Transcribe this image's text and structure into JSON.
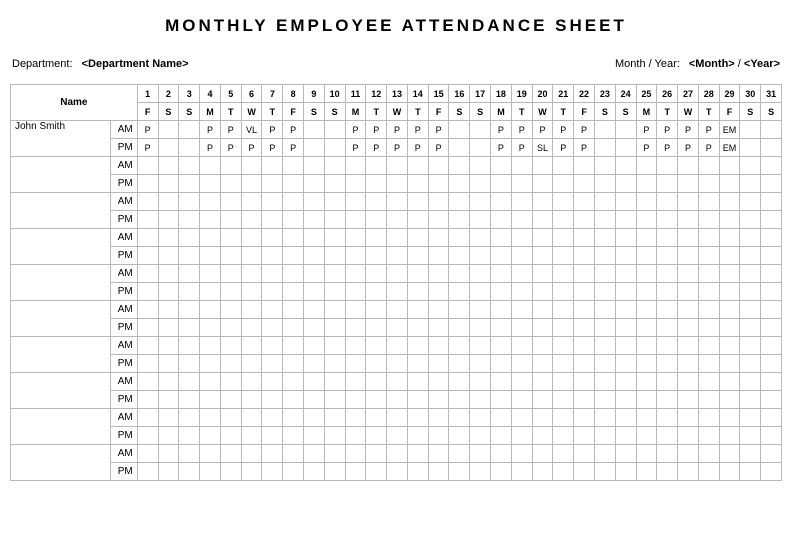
{
  "title": "MONTHLY EMPLOYEE ATTENDANCE SHEET",
  "meta": {
    "department_label": "Department:",
    "department_value": "<Department Name>",
    "month_year_label": "Month / Year:",
    "month_value": "<Month>",
    "month_year_separator": "/",
    "year_value": "<Year>"
  },
  "headers": {
    "name_label": "Name",
    "day_numbers": [
      "1",
      "2",
      "3",
      "4",
      "5",
      "6",
      "7",
      "8",
      "9",
      "10",
      "11",
      "12",
      "13",
      "14",
      "15",
      "16",
      "17",
      "18",
      "19",
      "20",
      "21",
      "22",
      "23",
      "24",
      "25",
      "26",
      "27",
      "28",
      "29",
      "30",
      "31"
    ],
    "day_letters": [
      "F",
      "S",
      "S",
      "M",
      "T",
      "W",
      "T",
      "F",
      "S",
      "S",
      "M",
      "T",
      "W",
      "T",
      "F",
      "S",
      "S",
      "M",
      "T",
      "W",
      "T",
      "F",
      "S",
      "S",
      "M",
      "T",
      "W",
      "T",
      "F",
      "S",
      "S"
    ]
  },
  "shift_labels": {
    "am": "AM",
    "pm": "PM"
  },
  "employees": [
    {
      "name": "John Smith",
      "am": [
        "P",
        "",
        "",
        "P",
        "P",
        "VL",
        "P",
        "P",
        "",
        "",
        "P",
        "P",
        "P",
        "P",
        "P",
        "",
        "",
        "P",
        "P",
        "P",
        "P",
        "P",
        "",
        "",
        "P",
        "P",
        "P",
        "P",
        "EM",
        "",
        ""
      ],
      "pm": [
        "P",
        "",
        "",
        "P",
        "P",
        "P",
        "P",
        "P",
        "",
        "",
        "P",
        "P",
        "P",
        "P",
        "P",
        "",
        "",
        "P",
        "P",
        "SL",
        "P",
        "P",
        "",
        "",
        "P",
        "P",
        "P",
        "P",
        "EM",
        "",
        ""
      ]
    },
    {
      "name": "",
      "am": [
        "",
        "",
        "",
        "",
        "",
        "",
        "",
        "",
        "",
        "",
        "",
        "",
        "",
        "",
        "",
        "",
        "",
        "",
        "",
        "",
        "",
        "",
        "",
        "",
        "",
        "",
        "",
        "",
        "",
        "",
        ""
      ],
      "pm": [
        "",
        "",
        "",
        "",
        "",
        "",
        "",
        "",
        "",
        "",
        "",
        "",
        "",
        "",
        "",
        "",
        "",
        "",
        "",
        "",
        "",
        "",
        "",
        "",
        "",
        "",
        "",
        "",
        "",
        "",
        ""
      ]
    },
    {
      "name": "",
      "am": [
        "",
        "",
        "",
        "",
        "",
        "",
        "",
        "",
        "",
        "",
        "",
        "",
        "",
        "",
        "",
        "",
        "",
        "",
        "",
        "",
        "",
        "",
        "",
        "",
        "",
        "",
        "",
        "",
        "",
        "",
        ""
      ],
      "pm": [
        "",
        "",
        "",
        "",
        "",
        "",
        "",
        "",
        "",
        "",
        "",
        "",
        "",
        "",
        "",
        "",
        "",
        "",
        "",
        "",
        "",
        "",
        "",
        "",
        "",
        "",
        "",
        "",
        "",
        "",
        ""
      ]
    },
    {
      "name": "",
      "am": [
        "",
        "",
        "",
        "",
        "",
        "",
        "",
        "",
        "",
        "",
        "",
        "",
        "",
        "",
        "",
        "",
        "",
        "",
        "",
        "",
        "",
        "",
        "",
        "",
        "",
        "",
        "",
        "",
        "",
        "",
        ""
      ],
      "pm": [
        "",
        "",
        "",
        "",
        "",
        "",
        "",
        "",
        "",
        "",
        "",
        "",
        "",
        "",
        "",
        "",
        "",
        "",
        "",
        "",
        "",
        "",
        "",
        "",
        "",
        "",
        "",
        "",
        "",
        "",
        ""
      ]
    },
    {
      "name": "",
      "am": [
        "",
        "",
        "",
        "",
        "",
        "",
        "",
        "",
        "",
        "",
        "",
        "",
        "",
        "",
        "",
        "",
        "",
        "",
        "",
        "",
        "",
        "",
        "",
        "",
        "",
        "",
        "",
        "",
        "",
        "",
        ""
      ],
      "pm": [
        "",
        "",
        "",
        "",
        "",
        "",
        "",
        "",
        "",
        "",
        "",
        "",
        "",
        "",
        "",
        "",
        "",
        "",
        "",
        "",
        "",
        "",
        "",
        "",
        "",
        "",
        "",
        "",
        "",
        "",
        ""
      ]
    },
    {
      "name": "",
      "am": [
        "",
        "",
        "",
        "",
        "",
        "",
        "",
        "",
        "",
        "",
        "",
        "",
        "",
        "",
        "",
        "",
        "",
        "",
        "",
        "",
        "",
        "",
        "",
        "",
        "",
        "",
        "",
        "",
        "",
        "",
        ""
      ],
      "pm": [
        "",
        "",
        "",
        "",
        "",
        "",
        "",
        "",
        "",
        "",
        "",
        "",
        "",
        "",
        "",
        "",
        "",
        "",
        "",
        "",
        "",
        "",
        "",
        "",
        "",
        "",
        "",
        "",
        "",
        "",
        ""
      ]
    },
    {
      "name": "",
      "am": [
        "",
        "",
        "",
        "",
        "",
        "",
        "",
        "",
        "",
        "",
        "",
        "",
        "",
        "",
        "",
        "",
        "",
        "",
        "",
        "",
        "",
        "",
        "",
        "",
        "",
        "",
        "",
        "",
        "",
        "",
        ""
      ],
      "pm": [
        "",
        "",
        "",
        "",
        "",
        "",
        "",
        "",
        "",
        "",
        "",
        "",
        "",
        "",
        "",
        "",
        "",
        "",
        "",
        "",
        "",
        "",
        "",
        "",
        "",
        "",
        "",
        "",
        "",
        "",
        ""
      ]
    },
    {
      "name": "",
      "am": [
        "",
        "",
        "",
        "",
        "",
        "",
        "",
        "",
        "",
        "",
        "",
        "",
        "",
        "",
        "",
        "",
        "",
        "",
        "",
        "",
        "",
        "",
        "",
        "",
        "",
        "",
        "",
        "",
        "",
        "",
        ""
      ],
      "pm": [
        "",
        "",
        "",
        "",
        "",
        "",
        "",
        "",
        "",
        "",
        "",
        "",
        "",
        "",
        "",
        "",
        "",
        "",
        "",
        "",
        "",
        "",
        "",
        "",
        "",
        "",
        "",
        "",
        "",
        "",
        ""
      ]
    },
    {
      "name": "",
      "am": [
        "",
        "",
        "",
        "",
        "",
        "",
        "",
        "",
        "",
        "",
        "",
        "",
        "",
        "",
        "",
        "",
        "",
        "",
        "",
        "",
        "",
        "",
        "",
        "",
        "",
        "",
        "",
        "",
        "",
        "",
        ""
      ],
      "pm": [
        "",
        "",
        "",
        "",
        "",
        "",
        "",
        "",
        "",
        "",
        "",
        "",
        "",
        "",
        "",
        "",
        "",
        "",
        "",
        "",
        "",
        "",
        "",
        "",
        "",
        "",
        "",
        "",
        "",
        "",
        ""
      ]
    },
    {
      "name": "",
      "am": [
        "",
        "",
        "",
        "",
        "",
        "",
        "",
        "",
        "",
        "",
        "",
        "",
        "",
        "",
        "",
        "",
        "",
        "",
        "",
        "",
        "",
        "",
        "",
        "",
        "",
        "",
        "",
        "",
        "",
        "",
        ""
      ],
      "pm": [
        "",
        "",
        "",
        "",
        "",
        "",
        "",
        "",
        "",
        "",
        "",
        "",
        "",
        "",
        "",
        "",
        "",
        "",
        "",
        "",
        "",
        "",
        "",
        "",
        "",
        "",
        "",
        "",
        "",
        "",
        ""
      ]
    }
  ],
  "colors": {
    "border": "#b8b8b8",
    "text": "#000000",
    "background": "#ffffff"
  }
}
